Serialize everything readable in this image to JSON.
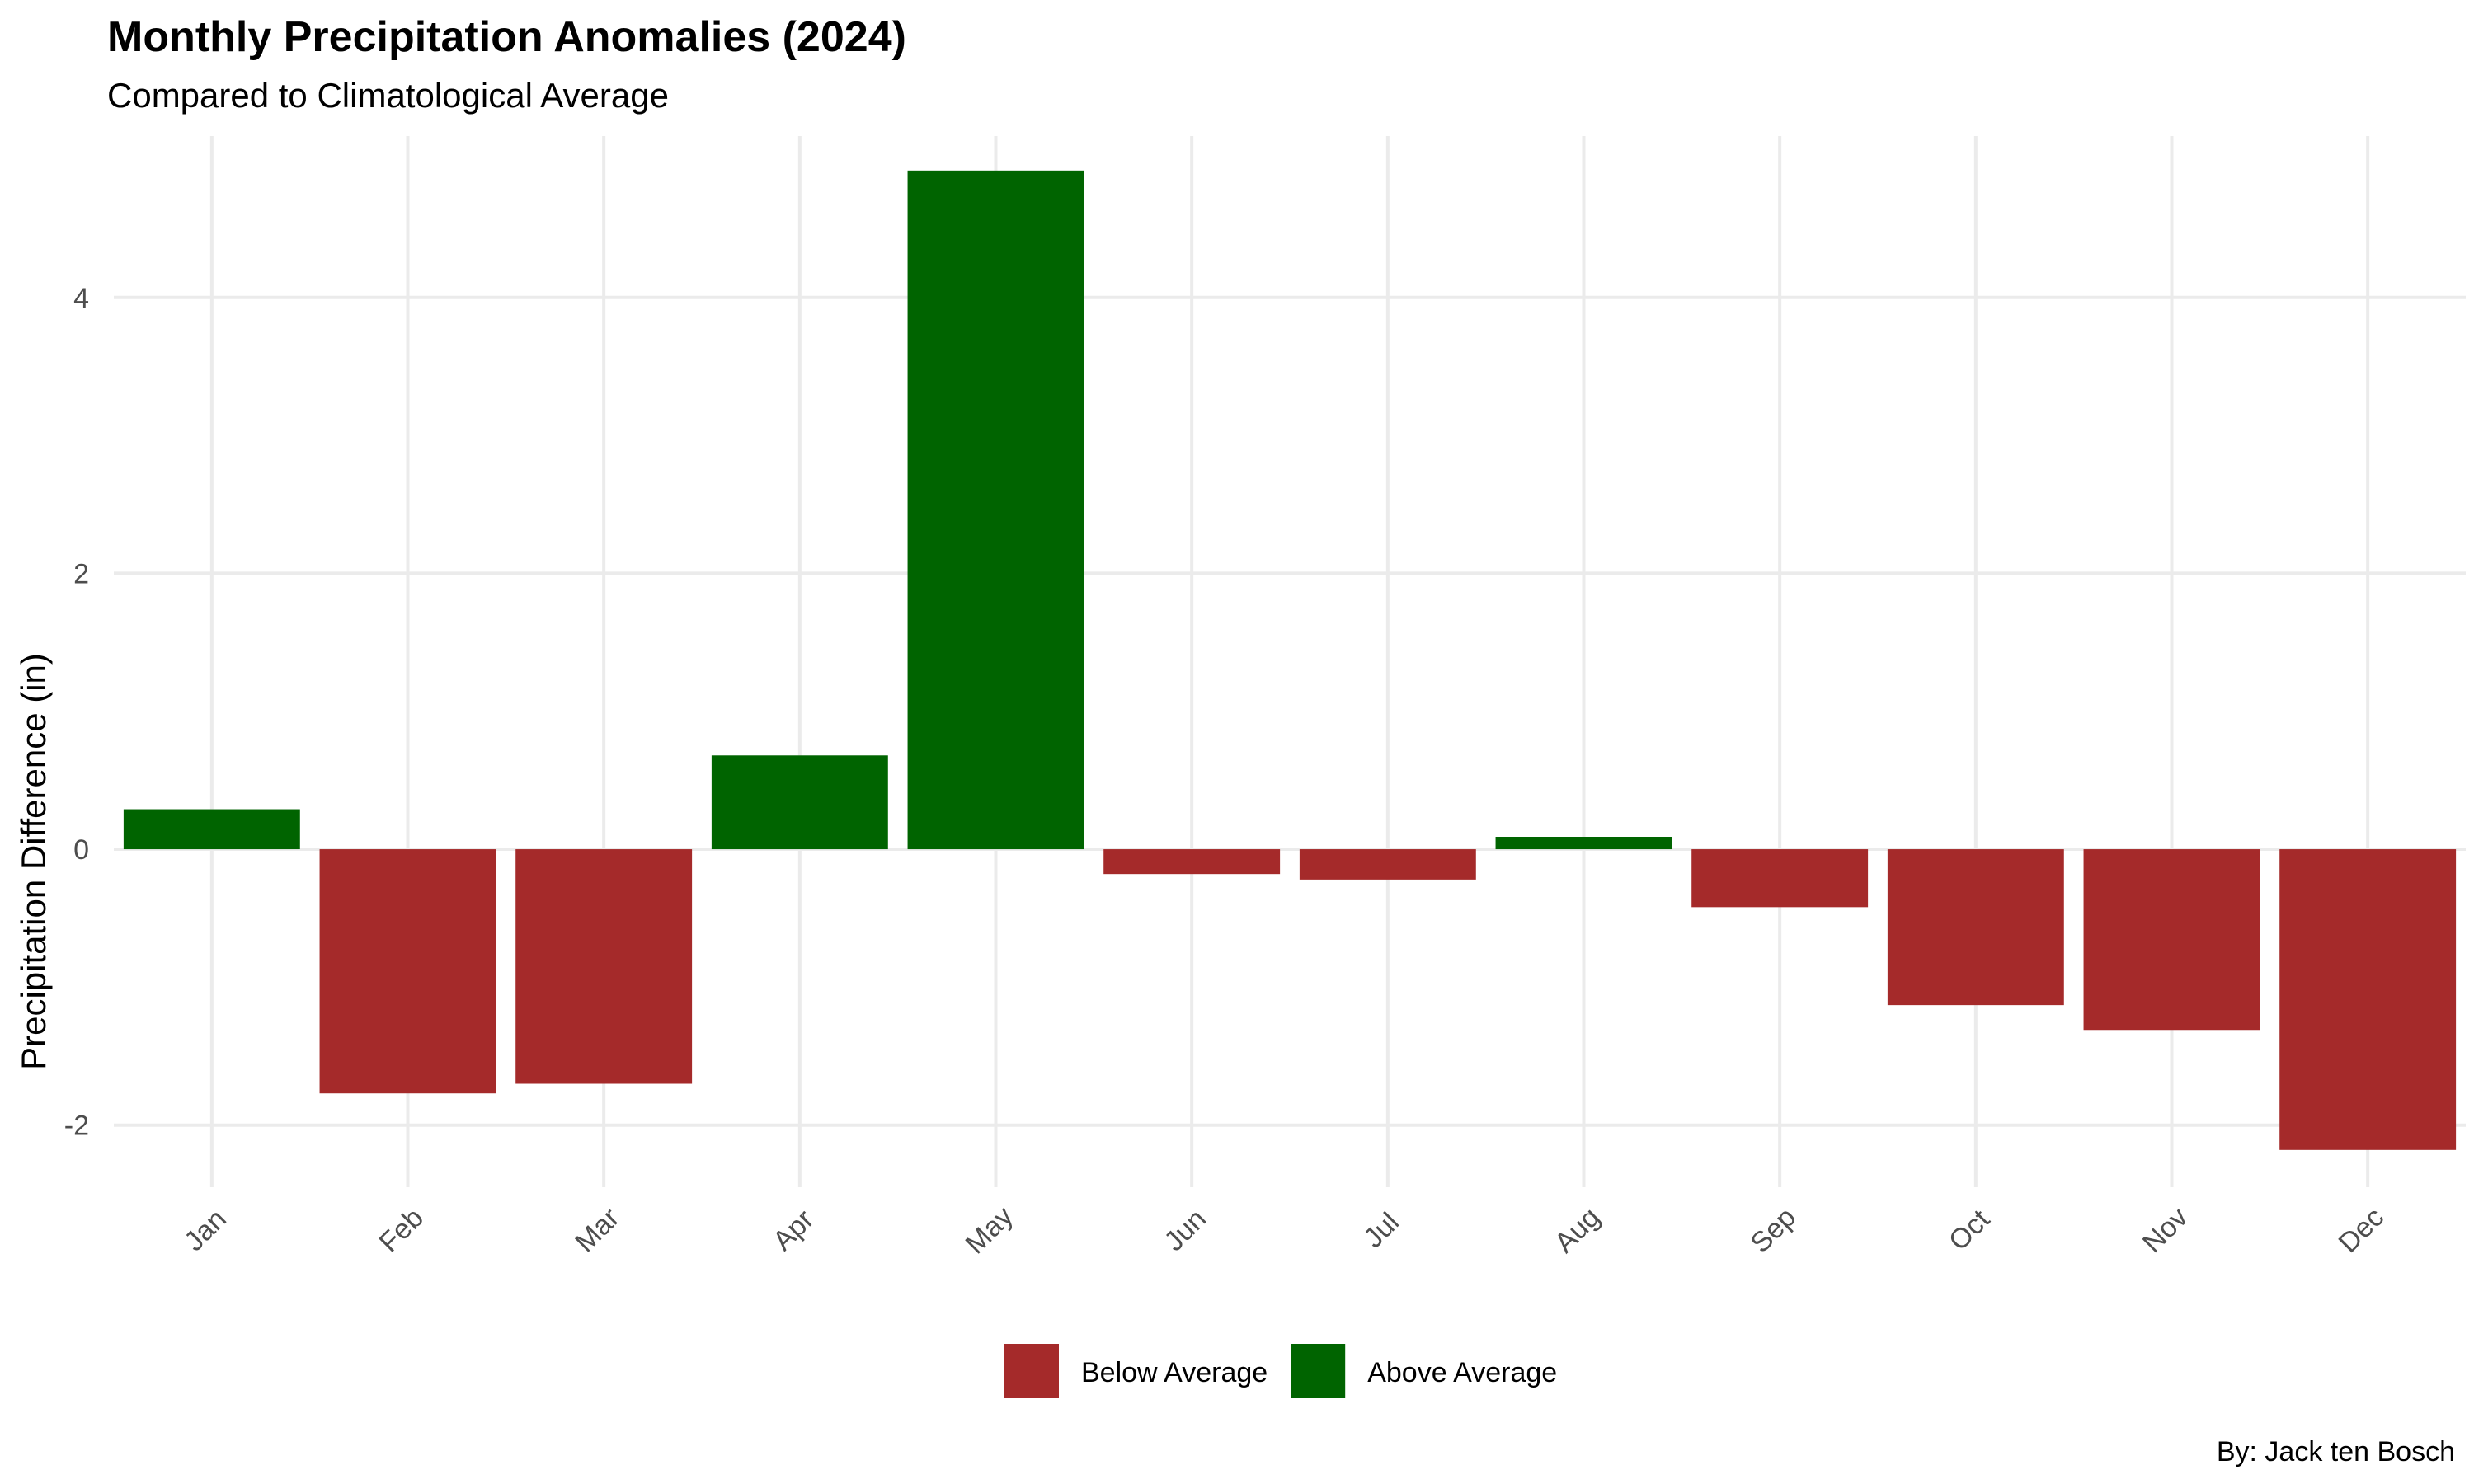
{
  "chart_data": {
    "type": "bar",
    "title": "Monthly Precipitation Anomalies (2024)",
    "subtitle": "Compared to Climatological Average",
    "xlabel": "",
    "ylabel": "Precipitation Difference (in)",
    "caption": "By: Jack ten Bosch",
    "categories": [
      "Jan",
      "Feb",
      "Mar",
      "Apr",
      "May",
      "Jun",
      "Jul",
      "Aug",
      "Sep",
      "Oct",
      "Nov",
      "Dec"
    ],
    "values": [
      0.29,
      -1.77,
      -1.7,
      0.68,
      4.92,
      -0.18,
      -0.22,
      0.09,
      -0.42,
      -1.13,
      -1.31,
      -2.18
    ],
    "series_groups": [
      "Above Average",
      "Below Average",
      "Below Average",
      "Above Average",
      "Above Average",
      "Below Average",
      "Below Average",
      "Above Average",
      "Below Average",
      "Below Average",
      "Below Average",
      "Below Average"
    ],
    "y_ticks": [
      -2,
      0,
      2,
      4
    ],
    "y_tick_labels": [
      "-2",
      "0",
      "2",
      "4"
    ],
    "ylim": [
      -2.45,
      5.17
    ],
    "grid": true,
    "legend": {
      "position": "bottom",
      "entries": [
        {
          "name": "Below Average",
          "color": "#A52A2A"
        },
        {
          "name": "Above Average",
          "color": "#006400"
        }
      ]
    },
    "colors": {
      "Above Average": "#006400",
      "Below Average": "#A52A2A"
    }
  }
}
